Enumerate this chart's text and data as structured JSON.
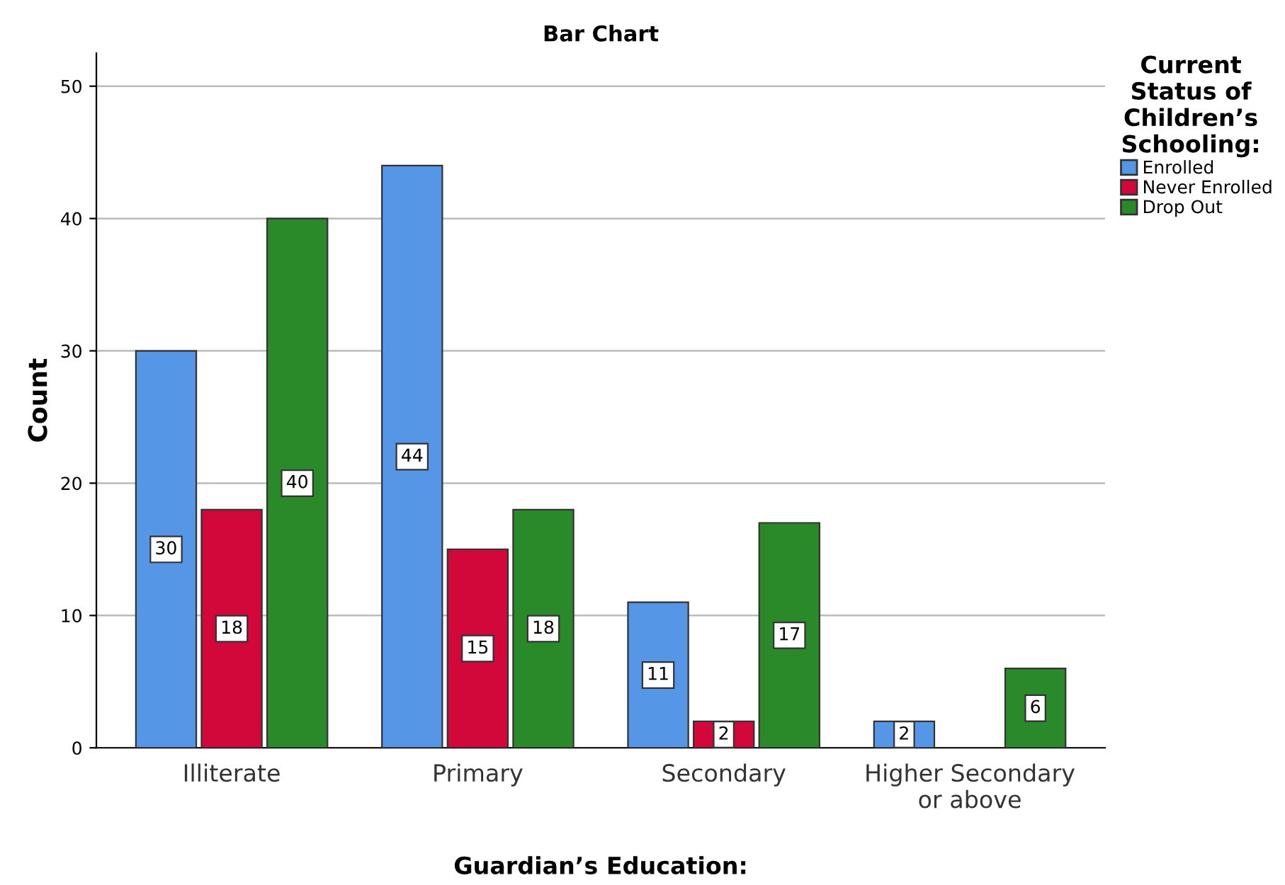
{
  "chart_data": {
    "type": "bar",
    "title": "Bar Chart",
    "xlabel": "Guardian’s Education:",
    "ylabel": "Count",
    "legend_title": "Current\nStatus of\nChildren’s\nSchooling:",
    "categories": [
      "Illiterate",
      "Primary",
      "Secondary",
      "Higher Secondary\nor above"
    ],
    "series": [
      {
        "name": "Enrolled",
        "color": "#5596e6",
        "values": [
          30,
          44,
          11,
          2
        ]
      },
      {
        "name": "Never Enrolled",
        "color": "#d2073a",
        "values": [
          18,
          15,
          2,
          null
        ]
      },
      {
        "name": "Drop Out",
        "color": "#2a8a2a",
        "values": [
          40,
          18,
          17,
          6
        ]
      }
    ],
    "ylim": [
      0,
      52.5
    ],
    "yticks": [
      0,
      10,
      20,
      30,
      40,
      50
    ],
    "grid": "y",
    "legend": "top right",
    "data_labels": true
  }
}
